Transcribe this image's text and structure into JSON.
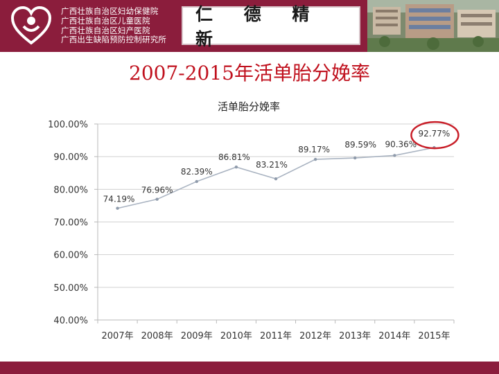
{
  "header": {
    "org_lines": [
      "广西壮族自治区妇幼保健院",
      "广西壮族自治区儿童医院",
      "广西壮族自治区妇产医院",
      "广西出生缺陷预防控制研究所"
    ],
    "motto": "仁 德 精 新"
  },
  "slide": {
    "title": "2007-2015年活单胎分娩率"
  },
  "colors": {
    "brand": "#8b1d3c",
    "title": "#c0111e",
    "line": "#a9b3c1",
    "highlight_circle": "#c81e28"
  },
  "chart_data": {
    "type": "line",
    "title": "活单胎分娩率",
    "categories": [
      "2007年",
      "2008年",
      "2009年",
      "2010年",
      "2011年",
      "2012年",
      "2013年",
      "2014年",
      "2015年"
    ],
    "values": [
      74.19,
      76.96,
      82.39,
      86.81,
      83.21,
      89.17,
      89.59,
      90.36,
      92.77
    ],
    "data_labels": [
      "74.19%",
      "76.96%",
      "82.39%",
      "86.81%",
      "83.21%",
      "89.17%",
      "89.59%",
      "90.36%",
      "92.77%"
    ],
    "y_ticks": [
      40,
      50,
      60,
      70,
      80,
      90,
      100
    ],
    "y_tick_labels": [
      "40.00%",
      "50.00%",
      "60.00%",
      "70.00%",
      "80.00%",
      "90.00%",
      "100.00%"
    ],
    "ylim": [
      40,
      100
    ],
    "grid": true,
    "legend": "none",
    "highlighted_point": "2015年"
  }
}
